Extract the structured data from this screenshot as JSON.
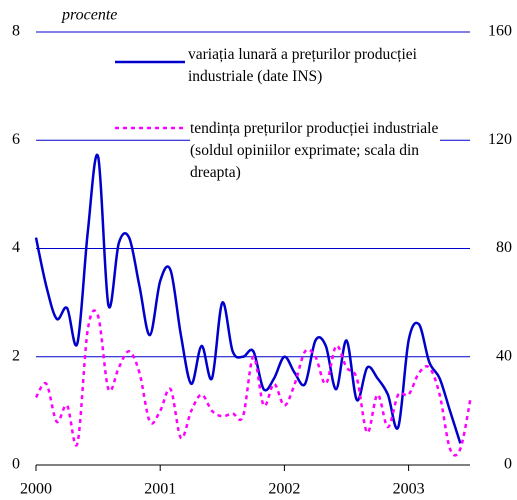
{
  "chart_data": {
    "type": "line",
    "ylabel": "procente",
    "categories": [
      "2000",
      null,
      null,
      null,
      null,
      null,
      null,
      null,
      null,
      null,
      null,
      null,
      "2001",
      null,
      null,
      null,
      null,
      null,
      null,
      null,
      null,
      null,
      null,
      null,
      "2002",
      null,
      null,
      null,
      null,
      null,
      null,
      null,
      null,
      null,
      null,
      null,
      "2003",
      null,
      null,
      null,
      null,
      null,
      null
    ],
    "series": [
      {
        "name": "variația lunară a prețurilor producției industriale (date INS)",
        "color": "#0000cc",
        "dash": false,
        "axis": "y",
        "values": [
          4.2,
          3.3,
          2.7,
          2.9,
          2.25,
          4.3,
          5.7,
          2.95,
          4.1,
          4.2,
          3.3,
          2.4,
          3.4,
          3.6,
          2.4,
          1.5,
          2.2,
          1.6,
          3.0,
          2.1,
          2.0,
          2.1,
          1.4,
          1.6,
          2.0,
          1.7,
          1.5,
          2.3,
          2.2,
          1.4,
          2.3,
          1.2,
          1.8,
          1.6,
          1.3,
          0.7,
          2.3,
          2.6,
          1.9,
          1.6,
          1.0,
          0.4,
          null
        ]
      },
      {
        "name": "tendința prețurilor producției industriale (soldul opiniilor exprimate; scala din dreapta)",
        "color": "#ff00ff",
        "dash": true,
        "axis": "y2",
        "values": [
          25,
          30,
          16,
          22,
          8,
          50,
          55,
          28,
          36,
          42,
          34,
          16,
          20,
          28,
          10,
          20,
          26,
          20,
          18,
          19,
          18,
          40,
          22,
          30,
          22,
          30,
          42,
          40,
          30,
          44,
          36,
          32,
          12,
          26,
          14,
          26,
          26,
          34,
          36,
          26,
          6,
          6,
          25
        ]
      }
    ],
    "ylim": [
      0,
      8
    ],
    "yticks": [
      0,
      2,
      4,
      6,
      8
    ],
    "y2lim": [
      0,
      160
    ],
    "y2ticks": [
      0,
      40,
      80,
      120,
      160
    ],
    "grid": true
  }
}
